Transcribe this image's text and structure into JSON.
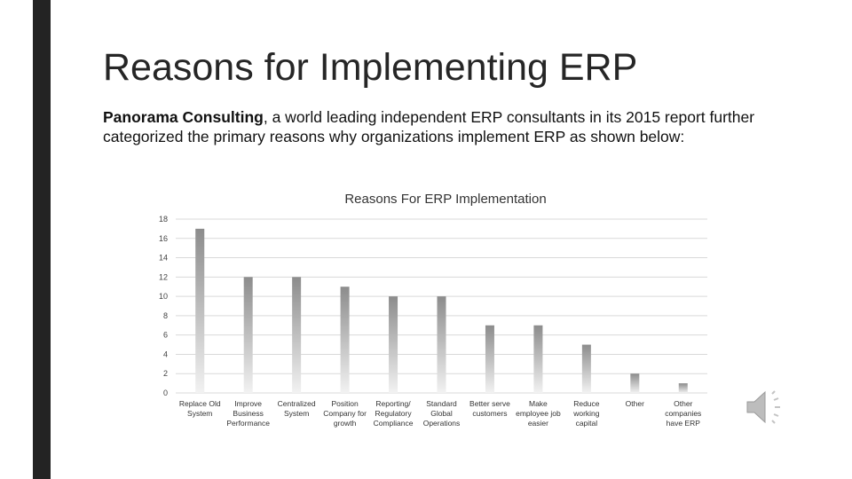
{
  "slide": {
    "title": "Reasons for Implementing ERP",
    "intro_bold": "Panorama Consulting",
    "intro_rest": ", a world leading independent ERP consultants in its 2015 report further categorized the primary reasons why organizations implement ERP as shown below:"
  },
  "colors": {
    "sidebar": "#232323",
    "bar_top": "#8c8c8c",
    "bar_bottom": "#f2f2f2",
    "grid": "#d9d9d9"
  },
  "audio_icon": "speaker-icon",
  "chart_data": {
    "type": "bar",
    "title": "Reasons For ERP Implementation",
    "categories": [
      [
        "Replace Old",
        "System"
      ],
      [
        "Improve",
        "Business",
        "Performance"
      ],
      [
        "Centralized",
        "System"
      ],
      [
        "Position",
        "Company for",
        "growth"
      ],
      [
        "Reporting/",
        "Regulatory",
        "Compliance"
      ],
      [
        "Standard",
        "Global",
        "Operations"
      ],
      [
        "Better serve",
        "customers"
      ],
      [
        "Make",
        "employee job",
        "easier"
      ],
      [
        "Reduce",
        "working",
        "capital"
      ],
      [
        "Other"
      ],
      [
        "Other",
        "companies",
        "have ERP"
      ]
    ],
    "values": [
      17,
      12,
      12,
      11,
      10,
      10,
      7,
      7,
      5,
      2,
      1
    ],
    "ylim": [
      0,
      18
    ],
    "yticks": [
      0,
      2,
      4,
      6,
      8,
      10,
      12,
      14,
      16,
      18
    ],
    "xlabel": "",
    "ylabel": "",
    "grid": true
  }
}
